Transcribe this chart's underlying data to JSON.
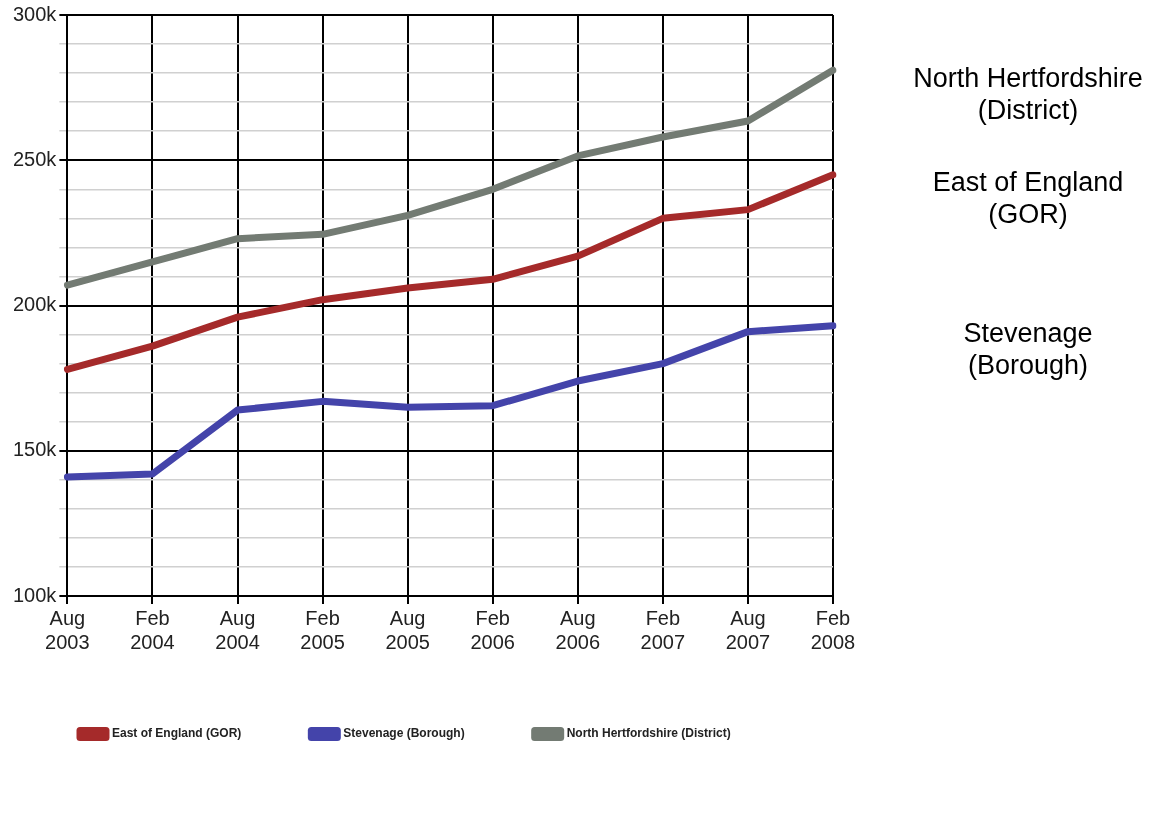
{
  "chart_data": {
    "type": "line",
    "categories": [
      "Aug 2003",
      "Feb 2004",
      "Aug 2004",
      "Feb 2005",
      "Aug 2005",
      "Feb 2006",
      "Aug 2006",
      "Feb 2007",
      "Aug 2007",
      "Feb 2008"
    ],
    "series": [
      {
        "name": "East of England (GOR)",
        "color": "#a52a2a",
        "values": [
          178000,
          186000,
          196000,
          202000,
          206000,
          209000,
          217000,
          230000,
          233000,
          245000
        ]
      },
      {
        "name": "Stevenage (Borough)",
        "color": "#4444aa",
        "values": [
          141000,
          142000,
          164000,
          167000,
          165000,
          165500,
          174000,
          180000,
          191000,
          193000
        ]
      },
      {
        "name": "North Hertfordshire (District)",
        "color": "#737b73",
        "values": [
          207000,
          215000,
          223000,
          224500,
          231000,
          240000,
          251500,
          258000,
          263500,
          281000
        ]
      }
    ],
    "ylim": [
      100000,
      300000
    ],
    "yticks": [
      {
        "value": 100000,
        "label": "100k"
      },
      {
        "value": 110000,
        "label": null
      },
      {
        "value": 120000,
        "label": null
      },
      {
        "value": 130000,
        "label": null
      },
      {
        "value": 140000,
        "label": null
      },
      {
        "value": 150000,
        "label": "150k"
      },
      {
        "value": 160000,
        "label": null
      },
      {
        "value": 170000,
        "label": null
      },
      {
        "value": 180000,
        "label": null
      },
      {
        "value": 190000,
        "label": null
      },
      {
        "value": 200000,
        "label": "200k"
      },
      {
        "value": 210000,
        "label": null
      },
      {
        "value": 220000,
        "label": null
      },
      {
        "value": 230000,
        "label": null
      },
      {
        "value": 240000,
        "label": null
      },
      {
        "value": 250000,
        "label": "250k"
      },
      {
        "value": 260000,
        "label": null
      },
      {
        "value": 270000,
        "label": null
      },
      {
        "value": 280000,
        "label": null
      },
      {
        "value": 290000,
        "label": null
      },
      {
        "value": 300000,
        "label": "300k"
      }
    ],
    "grid": true,
    "legend": "bottom",
    "marker": "none",
    "line_style": "solid"
  }
}
